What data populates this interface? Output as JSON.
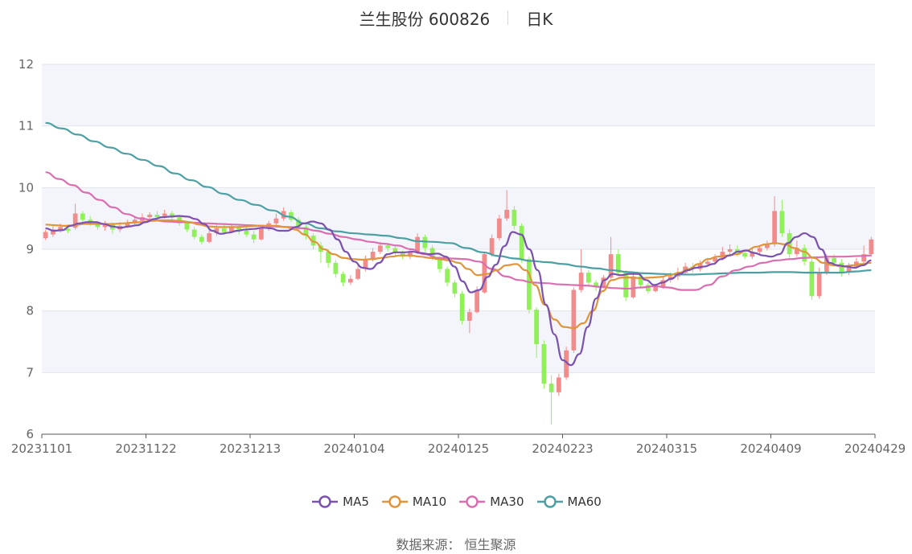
{
  "title": {
    "stock": "兰生股份 600826",
    "period": "日K"
  },
  "source": "数据来源： 恒生聚源",
  "colors": {
    "up": "#f28c8c",
    "down": "#8ff05a",
    "ma5": "#7b52b0",
    "ma10": "#e0953a",
    "ma30": "#d96fb0",
    "ma60": "#4d9fa3",
    "band": "#f4f5fa",
    "grid": "#e0e4ee",
    "axis": "#666666"
  },
  "chart_data": {
    "type": "candlestick",
    "ylim": [
      6,
      12
    ],
    "yticks": [
      "6",
      "7",
      "8",
      "9",
      "10",
      "11",
      "12"
    ],
    "xlabels": [
      "20231101",
      "20231122",
      "20231213",
      "20240104",
      "20240125",
      "20240223",
      "20240315",
      "20240409",
      "20240429"
    ],
    "grid": true,
    "legend_position": "bottom",
    "series": [
      {
        "name": "MA5",
        "color": "#7b52b0"
      },
      {
        "name": "MA10",
        "color": "#e0953a"
      },
      {
        "name": "MA30",
        "color": "#d96fb0"
      },
      {
        "name": "MA60",
        "color": "#4d9fa3"
      }
    ],
    "candles": [
      [
        9.18,
        9.28,
        9.15,
        9.32
      ],
      [
        9.24,
        9.32,
        9.2,
        9.38
      ],
      [
        9.3,
        9.36,
        9.27,
        9.42
      ],
      [
        9.33,
        9.3,
        9.26,
        9.4
      ],
      [
        9.35,
        9.58,
        9.32,
        9.74
      ],
      [
        9.58,
        9.48,
        9.44,
        9.62
      ],
      [
        9.48,
        9.42,
        9.38,
        9.54
      ],
      [
        9.42,
        9.36,
        9.32,
        9.46
      ],
      [
        9.36,
        9.4,
        9.3,
        9.46
      ],
      [
        9.4,
        9.32,
        9.25,
        9.44
      ],
      [
        9.32,
        9.38,
        9.28,
        9.44
      ],
      [
        9.38,
        9.42,
        9.34,
        9.48
      ],
      [
        9.42,
        9.48,
        9.4,
        9.54
      ],
      [
        9.46,
        9.52,
        9.42,
        9.58
      ],
      [
        9.52,
        9.56,
        9.46,
        9.6
      ],
      [
        9.56,
        9.52,
        9.48,
        9.62
      ],
      [
        9.54,
        9.58,
        9.5,
        9.64
      ],
      [
        9.58,
        9.52,
        9.48,
        9.62
      ],
      [
        9.52,
        9.42,
        9.38,
        9.56
      ],
      [
        9.42,
        9.32,
        9.28,
        9.46
      ],
      [
        9.32,
        9.2,
        9.16,
        9.36
      ],
      [
        9.2,
        9.12,
        9.08,
        9.24
      ],
      [
        9.12,
        9.26,
        9.1,
        9.3
      ],
      [
        9.26,
        9.34,
        9.22,
        9.4
      ],
      [
        9.34,
        9.28,
        9.24,
        9.4
      ],
      [
        9.28,
        9.36,
        9.26,
        9.42
      ],
      [
        9.36,
        9.3,
        9.24,
        9.4
      ],
      [
        9.3,
        9.24,
        9.2,
        9.36
      ],
      [
        9.24,
        9.16,
        9.1,
        9.3
      ],
      [
        9.16,
        9.34,
        9.14,
        9.4
      ],
      [
        9.34,
        9.42,
        9.3,
        9.46
      ],
      [
        9.42,
        9.5,
        9.38,
        9.58
      ],
      [
        9.5,
        9.62,
        9.46,
        9.68
      ],
      [
        9.6,
        9.48,
        9.44,
        9.64
      ],
      [
        9.48,
        9.36,
        9.3,
        9.52
      ],
      [
        9.36,
        9.22,
        9.16,
        9.4
      ],
      [
        9.22,
        9.06,
        9.0,
        9.26
      ],
      [
        9.06,
        8.96,
        8.78,
        9.12
      ],
      [
        8.96,
        8.78,
        8.7,
        9.0
      ],
      [
        8.78,
        8.6,
        8.54,
        8.82
      ],
      [
        8.6,
        8.46,
        8.4,
        8.64
      ],
      [
        8.46,
        8.52,
        8.42,
        8.58
      ],
      [
        8.52,
        8.68,
        8.5,
        8.74
      ],
      [
        8.68,
        8.84,
        8.64,
        8.9
      ],
      [
        8.84,
        8.96,
        8.8,
        9.02
      ],
      [
        8.96,
        9.06,
        8.92,
        9.12
      ],
      [
        9.06,
        9.02,
        8.96,
        9.1
      ],
      [
        9.02,
        8.94,
        8.88,
        9.06
      ],
      [
        8.94,
        8.88,
        8.84,
        8.98
      ],
      [
        8.88,
        8.96,
        8.84,
        9.02
      ],
      [
        8.96,
        9.2,
        8.92,
        9.26
      ],
      [
        9.2,
        9.02,
        8.96,
        9.24
      ],
      [
        9.02,
        8.86,
        8.82,
        9.06
      ],
      [
        8.86,
        8.68,
        8.62,
        8.9
      ],
      [
        8.68,
        8.46,
        8.4,
        8.72
      ],
      [
        8.46,
        8.28,
        8.22,
        8.5
      ],
      [
        8.28,
        7.84,
        7.78,
        8.32
      ],
      [
        7.84,
        7.98,
        7.64,
        8.04
      ],
      [
        7.98,
        8.34,
        7.96,
        8.4
      ],
      [
        8.3,
        8.92,
        8.28,
        8.96
      ],
      [
        8.92,
        9.18,
        8.88,
        9.24
      ],
      [
        9.18,
        9.5,
        9.14,
        9.56
      ],
      [
        9.5,
        9.64,
        9.46,
        9.96
      ],
      [
        9.64,
        9.38,
        9.32,
        9.7
      ],
      [
        9.38,
        8.84,
        8.78,
        9.42
      ],
      [
        8.84,
        8.02,
        7.96,
        8.88
      ],
      [
        8.02,
        7.46,
        7.24,
        8.06
      ],
      [
        7.46,
        6.82,
        6.74,
        7.52
      ],
      [
        6.82,
        6.68,
        6.16,
        6.96
      ],
      [
        6.68,
        6.92,
        6.62,
        6.98
      ],
      [
        6.92,
        7.36,
        6.88,
        7.42
      ],
      [
        7.36,
        8.34,
        7.32,
        8.38
      ],
      [
        8.34,
        8.62,
        8.3,
        9.0
      ],
      [
        8.62,
        8.46,
        8.4,
        8.66
      ],
      [
        8.46,
        8.38,
        8.32,
        8.5
      ],
      [
        8.38,
        8.54,
        8.36,
        8.58
      ],
      [
        8.54,
        8.92,
        8.52,
        9.2
      ],
      [
        8.92,
        8.62,
        8.56,
        9.0
      ],
      [
        8.62,
        8.22,
        8.16,
        8.66
      ],
      [
        8.22,
        8.56,
        8.2,
        8.62
      ],
      [
        8.56,
        8.42,
        8.36,
        8.6
      ],
      [
        8.42,
        8.32,
        8.28,
        8.46
      ],
      [
        8.32,
        8.4,
        8.3,
        8.44
      ],
      [
        8.4,
        8.5,
        8.36,
        8.56
      ],
      [
        8.5,
        8.56,
        8.46,
        8.62
      ],
      [
        8.56,
        8.62,
        8.5,
        8.7
      ],
      [
        8.62,
        8.72,
        8.58,
        8.78
      ],
      [
        8.72,
        8.68,
        8.62,
        8.78
      ],
      [
        8.68,
        8.76,
        8.64,
        8.82
      ],
      [
        8.76,
        8.8,
        8.72,
        8.86
      ],
      [
        8.8,
        8.86,
        8.76,
        8.92
      ],
      [
        8.86,
        8.96,
        8.82,
        9.04
      ],
      [
        8.96,
        9.0,
        8.9,
        9.08
      ],
      [
        9.0,
        8.94,
        8.88,
        9.06
      ],
      [
        8.94,
        8.88,
        8.84,
        8.98
      ],
      [
        8.88,
        8.96,
        8.84,
        9.02
      ],
      [
        8.96,
        9.02,
        8.92,
        9.06
      ],
      [
        9.02,
        9.08,
        8.98,
        9.14
      ],
      [
        9.08,
        9.62,
        9.04,
        9.86
      ],
      [
        9.62,
        9.26,
        9.2,
        9.8
      ],
      [
        9.26,
        8.92,
        8.86,
        9.32
      ],
      [
        8.92,
        9.02,
        8.88,
        9.14
      ],
      [
        9.02,
        8.8,
        8.74,
        9.08
      ],
      [
        8.8,
        8.24,
        8.18,
        8.86
      ],
      [
        8.24,
        8.62,
        8.2,
        8.7
      ],
      [
        8.62,
        8.86,
        8.58,
        8.92
      ],
      [
        8.86,
        8.78,
        8.72,
        8.92
      ],
      [
        8.78,
        8.62,
        8.56,
        8.84
      ],
      [
        8.62,
        8.72,
        8.58,
        8.78
      ],
      [
        8.72,
        8.8,
        8.68,
        8.86
      ],
      [
        8.8,
        8.92,
        8.76,
        9.06
      ],
      [
        8.92,
        9.16,
        8.88,
        9.2
      ]
    ],
    "ma5": [
      9.34,
      9.3,
      9.31,
      9.38,
      9.42,
      9.44,
      9.44,
      9.41,
      9.37,
      9.35,
      9.37,
      9.39,
      9.44,
      9.49,
      9.52,
      9.53,
      9.54,
      9.53,
      9.49,
      9.41,
      9.3,
      9.25,
      9.27,
      9.3,
      9.32,
      9.33,
      9.35,
      9.34,
      9.3,
      9.3,
      9.36,
      9.42,
      9.45,
      9.42,
      9.32,
      9.16,
      8.96,
      8.8,
      8.7,
      8.68,
      8.78,
      8.92,
      8.95,
      8.95,
      8.96,
      8.94,
      8.92,
      8.93,
      8.88,
      8.72,
      8.48,
      8.3,
      8.34,
      8.55,
      8.75,
      9.05,
      9.28,
      9.24,
      9.0,
      8.66,
      8.1,
      7.62,
      7.2,
      7.12,
      7.3,
      7.74,
      8.2,
      8.5,
      8.6,
      8.58,
      8.6,
      8.6,
      8.5,
      8.42,
      8.46,
      8.52,
      8.6,
      8.66,
      8.7,
      8.72,
      8.76,
      8.84,
      8.9,
      8.96,
      8.98,
      8.94,
      8.9,
      8.88,
      8.92,
      9.1,
      9.2,
      9.26,
      9.2,
      9.0,
      8.78,
      8.74,
      8.72,
      8.7,
      8.74,
      8.82
    ],
    "ma10": [
      9.4,
      9.39,
      9.38,
      9.39,
      9.41,
      9.41,
      9.41,
      9.41,
      9.42,
      9.43,
      9.44,
      9.46,
      9.47,
      9.47,
      9.46,
      9.44,
      9.4,
      9.37,
      9.36,
      9.36,
      9.36,
      9.37,
      9.38,
      9.38,
      9.38,
      9.36,
      9.32,
      9.24,
      9.12,
      9.0,
      8.92,
      8.86,
      8.84,
      8.83,
      8.84,
      8.86,
      8.88,
      8.9,
      8.9,
      8.88,
      8.86,
      8.84,
      8.82,
      8.78,
      8.68,
      8.58,
      8.6,
      8.66,
      8.74,
      8.76,
      8.66,
      8.42,
      8.1,
      7.86,
      7.74,
      7.72,
      7.8,
      8.0,
      8.32,
      8.5,
      8.54,
      8.54,
      8.53,
      8.54,
      8.55,
      8.58,
      8.62,
      8.68,
      8.76,
      8.84,
      8.88,
      8.9,
      8.92,
      8.98,
      9.04,
      9.08,
      9.1,
      9.08,
      9.02,
      8.96,
      8.86,
      8.78,
      8.74,
      8.72,
      8.74,
      8.76,
      8.78
    ],
    "ma30": [
      10.25,
      10.14,
      10.04,
      9.92,
      9.8,
      9.68,
      9.57,
      9.5,
      9.47,
      9.45,
      9.44,
      9.43,
      9.42,
      9.41,
      9.4,
      9.39,
      9.38,
      9.37,
      9.36,
      9.34,
      9.3,
      9.25,
      9.2,
      9.16,
      9.12,
      9.09,
      9.06,
      9.0,
      8.92,
      8.86,
      8.85,
      8.84,
      8.8,
      8.68,
      8.56,
      8.5,
      8.46,
      8.45,
      8.43,
      8.42,
      8.41,
      8.39,
      8.37,
      8.36,
      8.38,
      8.4,
      8.38,
      8.34,
      8.34,
      8.42,
      8.56,
      8.66,
      8.72,
      8.78,
      8.82,
      8.84,
      8.86,
      8.87,
      8.88,
      8.88,
      8.89,
      8.9
    ],
    "ma60": [
      11.05,
      10.96,
      10.86,
      10.75,
      10.65,
      10.55,
      10.45,
      10.35,
      10.23,
      10.12,
      10.01,
      9.9,
      9.8,
      9.72,
      9.63,
      9.53,
      9.42,
      9.34,
      9.29,
      9.26,
      9.24,
      9.22,
      9.18,
      9.13,
      9.12,
      9.1,
      9.02,
      8.95,
      8.89,
      8.85,
      8.81,
      8.79,
      8.76,
      8.72,
      8.69,
      8.66,
      8.63,
      8.61,
      8.6,
      8.59,
      8.59,
      8.6,
      8.61,
      8.62,
      8.62,
      8.63,
      8.63,
      8.62,
      8.62,
      8.62,
      8.64,
      8.66
    ]
  }
}
